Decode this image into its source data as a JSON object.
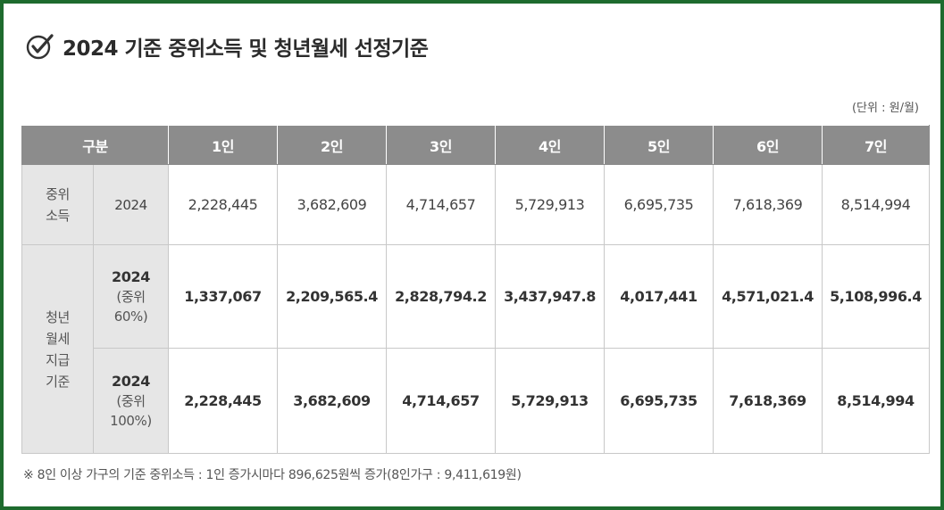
{
  "title": "2024 기준 중위소득 및 청년월세 선정기준",
  "unit": "(단위 : 원/월)",
  "table": {
    "header": {
      "category": "구분",
      "columns": [
        "1인",
        "2인",
        "3인",
        "4인",
        "5인",
        "6인",
        "7인"
      ]
    },
    "median_income": {
      "category": "중위\n소득",
      "year": "2024",
      "values": [
        "2,228,445",
        "3,682,609",
        "4,714,657",
        "5,729,913",
        "6,695,735",
        "7,618,369",
        "8,514,994"
      ]
    },
    "youth_rent": {
      "category": "청년\n월세\n지급\n기준",
      "rows": [
        {
          "year": "2024",
          "pct": "(중위\n60%)",
          "values": [
            "1,337,067",
            "2,209,565.4",
            "2,828,794.2",
            "3,437,947.8",
            "4,017,441",
            "4,571,021.4",
            "5,108,996.4"
          ]
        },
        {
          "year": "2024",
          "pct": "(중위\n100%)",
          "values": [
            "2,228,445",
            "3,682,609",
            "4,714,657",
            "5,729,913",
            "6,695,735",
            "7,618,369",
            "8,514,994"
          ]
        }
      ]
    }
  },
  "note": "※ 8인 이상 가구의 기준 중위소득 : 1인 증가시마다 896,625원씩 증가(8인가구 : 9,411,619원)",
  "colors": {
    "frame": "#1e6b2e",
    "header_bg": "#8c8c8c",
    "label_bg": "#e6e6e6"
  },
  "icons": {
    "title_icon": "check-circle-icon"
  }
}
